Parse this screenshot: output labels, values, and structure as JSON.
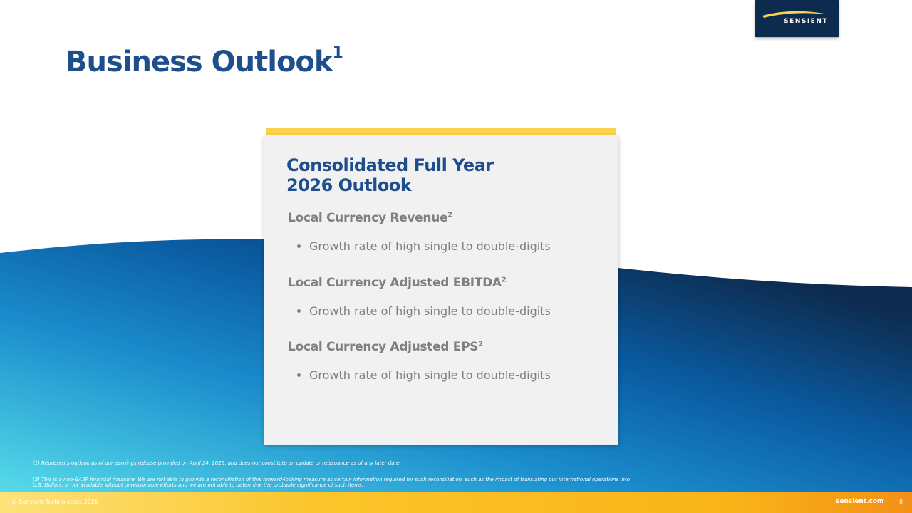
{
  "header": {
    "title": "Business Outlook",
    "title_note": "1",
    "logo": "SENSIENT"
  },
  "card": {
    "title_lines": [
      "Consolidated Full Year",
      "2026 Outlook"
    ],
    "sections": [
      {
        "heading": "Local Currency Revenue",
        "note": "2",
        "bullet": "Growth rate of high single to double-digits"
      },
      {
        "heading": "Local Currency Adjusted EBITDA",
        "note": "2",
        "bullet": "Growth rate of high single to double-digits"
      },
      {
        "heading": "Local Currency Adjusted EPS",
        "note": "2",
        "bullet": "Growth rate of high single to double-digits"
      }
    ]
  },
  "footnotes": [
    "(1) Represents outlook as of our earnings release provided on April 24, 2026, and does not constitute an update or reissuance as of any later date.",
    "(2) This is a non-GAAP financial measure. We are not able to provide a reconciliation of this forward-looking measure as certain information required for such reconciliation, such as the impact of translating our international operations into U.S. Dollars, is not available without unreasonable efforts and we are not able to determine the probable significance of such items."
  ],
  "footer": {
    "copyright": "© Sensient Technologies 2026",
    "website": "sensient.com",
    "page": "8"
  }
}
